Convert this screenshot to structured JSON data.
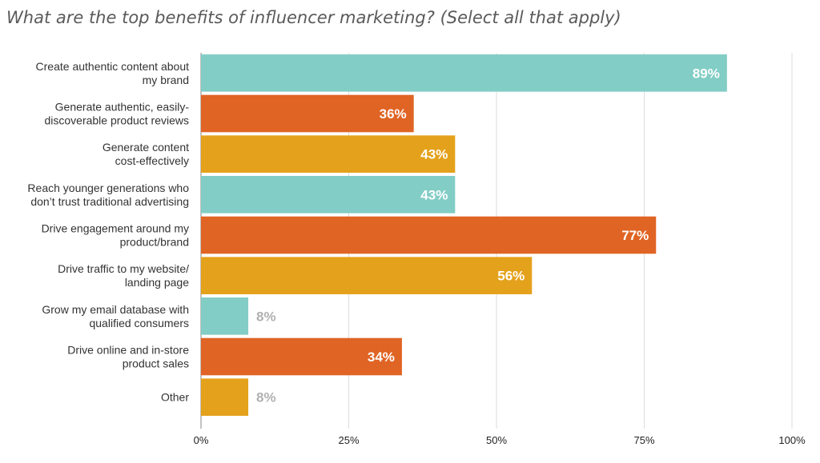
{
  "chart_data": {
    "type": "bar",
    "orientation": "horizontal",
    "title": "What are the top benefits of influencer marketing? (Select all that apply)",
    "categories": [
      [
        "Create authentic content about",
        "my brand"
      ],
      [
        "Generate authentic, easily-",
        "discoverable product reviews"
      ],
      [
        "Generate content",
        "cost-effectively"
      ],
      [
        "Reach younger generations who",
        "don’t trust traditional advertising"
      ],
      [
        "Drive engagement around my",
        "product/brand"
      ],
      [
        "Drive traffic to my website/",
        "landing page"
      ],
      [
        "Grow my email database with",
        "qualified consumers"
      ],
      [
        "Drive online and in-store",
        "product sales"
      ],
      [
        "Other"
      ]
    ],
    "values": [
      89,
      36,
      43,
      43,
      77,
      56,
      8,
      34,
      8
    ],
    "value_labels": [
      "89%",
      "36%",
      "43%",
      "43%",
      "77%",
      "56%",
      "8%",
      "34%",
      "8%"
    ],
    "bar_colors": [
      "#82cdc5",
      "#e06424",
      "#e4a11b",
      "#82cdc5",
      "#e06424",
      "#e4a11b",
      "#82cdc5",
      "#e06424",
      "#e4a11b"
    ],
    "xlim": [
      0,
      100
    ],
    "xticks": [
      0,
      25,
      50,
      75,
      100
    ],
    "xtick_labels": [
      "0%",
      "25%",
      "50%",
      "75%",
      "100%"
    ],
    "grid": true,
    "grid_color": "#dddddd",
    "inside_label_color": "#ffffff",
    "outside_label_color": "#b0b0b0",
    "xlabel": "",
    "ylabel": ""
  }
}
